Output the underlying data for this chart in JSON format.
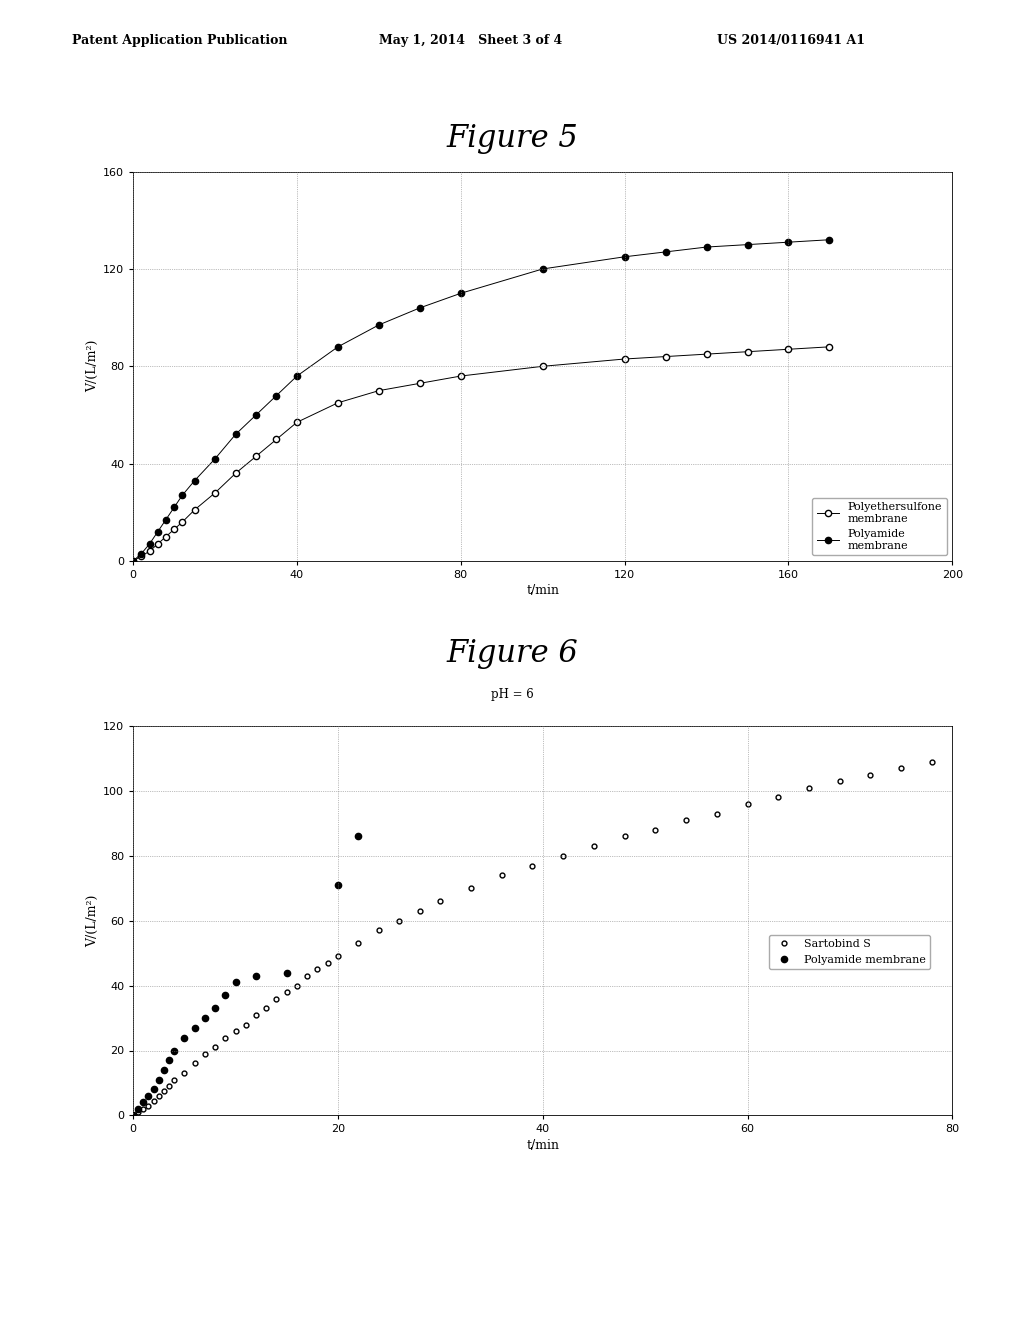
{
  "fig5_title": "Figure 5",
  "fig6_title": "Figure 6",
  "fig6_subtitle": "pH = 6",
  "header_left": "Patent Application Publication",
  "header_mid": "May 1, 2014   Sheet 3 of 4",
  "header_right": "US 2014/0116941 A1",
  "fig5": {
    "xlabel": "t/min",
    "ylabel": "V/(L/m²)",
    "xlim": [
      0,
      200
    ],
    "ylim": [
      0,
      160
    ],
    "xticks": [
      0,
      40,
      80,
      120,
      160,
      200
    ],
    "yticks": [
      0,
      40,
      80,
      120,
      160
    ],
    "series1_label": "Polyethersulfone\nmembrane",
    "series1_x": [
      0,
      2,
      4,
      6,
      8,
      10,
      12,
      15,
      20,
      25,
      30,
      35,
      40,
      50,
      60,
      70,
      80,
      100,
      120,
      130,
      140,
      150,
      160,
      170
    ],
    "series1_y": [
      0,
      2,
      4,
      7,
      10,
      13,
      16,
      21,
      28,
      36,
      43,
      50,
      57,
      65,
      70,
      73,
      76,
      80,
      83,
      84,
      85,
      86,
      87,
      88
    ],
    "series2_label": "Polyamide\nmembrane",
    "series2_x": [
      0,
      2,
      4,
      6,
      8,
      10,
      12,
      15,
      20,
      25,
      30,
      35,
      40,
      50,
      60,
      70,
      80,
      100,
      120,
      130,
      140,
      150,
      160,
      170
    ],
    "series2_y": [
      0,
      3,
      7,
      12,
      17,
      22,
      27,
      33,
      42,
      52,
      60,
      68,
      76,
      88,
      97,
      104,
      110,
      120,
      125,
      127,
      129,
      130,
      131,
      132
    ]
  },
  "fig6": {
    "xlabel": "t/min",
    "ylabel": "V/(L/m²)",
    "xlim": [
      0,
      80
    ],
    "ylim": [
      0,
      120
    ],
    "xticks": [
      0,
      20,
      40,
      60,
      80
    ],
    "yticks": [
      0,
      20,
      40,
      60,
      80,
      100,
      120
    ],
    "series1_label": "Sartobind S",
    "series1_x": [
      0,
      0.5,
      1,
      1.5,
      2,
      2.5,
      3,
      3.5,
      4,
      5,
      6,
      7,
      8,
      9,
      10,
      11,
      12,
      13,
      14,
      15,
      16,
      17,
      18,
      19,
      20,
      22,
      24,
      26,
      28,
      30,
      33,
      36,
      39,
      42,
      45,
      48,
      51,
      54,
      57,
      60,
      63,
      66,
      69,
      72,
      75,
      78
    ],
    "series1_y": [
      0,
      1,
      2,
      3,
      4.5,
      6,
      7.5,
      9,
      11,
      13,
      16,
      19,
      21,
      24,
      26,
      28,
      31,
      33,
      36,
      38,
      40,
      43,
      45,
      47,
      49,
      53,
      57,
      60,
      63,
      66,
      70,
      74,
      77,
      80,
      83,
      86,
      88,
      91,
      93,
      96,
      98,
      101,
      103,
      105,
      107,
      109
    ],
    "series2_label": "Polyamide membrane",
    "series2_x": [
      0,
      0.5,
      1,
      1.5,
      2,
      2.5,
      3,
      3.5,
      4,
      5,
      6,
      7,
      8,
      9,
      10,
      12,
      15,
      20,
      22
    ],
    "series2_y": [
      0,
      2,
      4,
      6,
      8,
      11,
      14,
      17,
      20,
      24,
      27,
      30,
      33,
      37,
      41,
      43,
      44,
      71,
      86
    ]
  },
  "bg_color": "#ffffff",
  "font_family": "serif"
}
